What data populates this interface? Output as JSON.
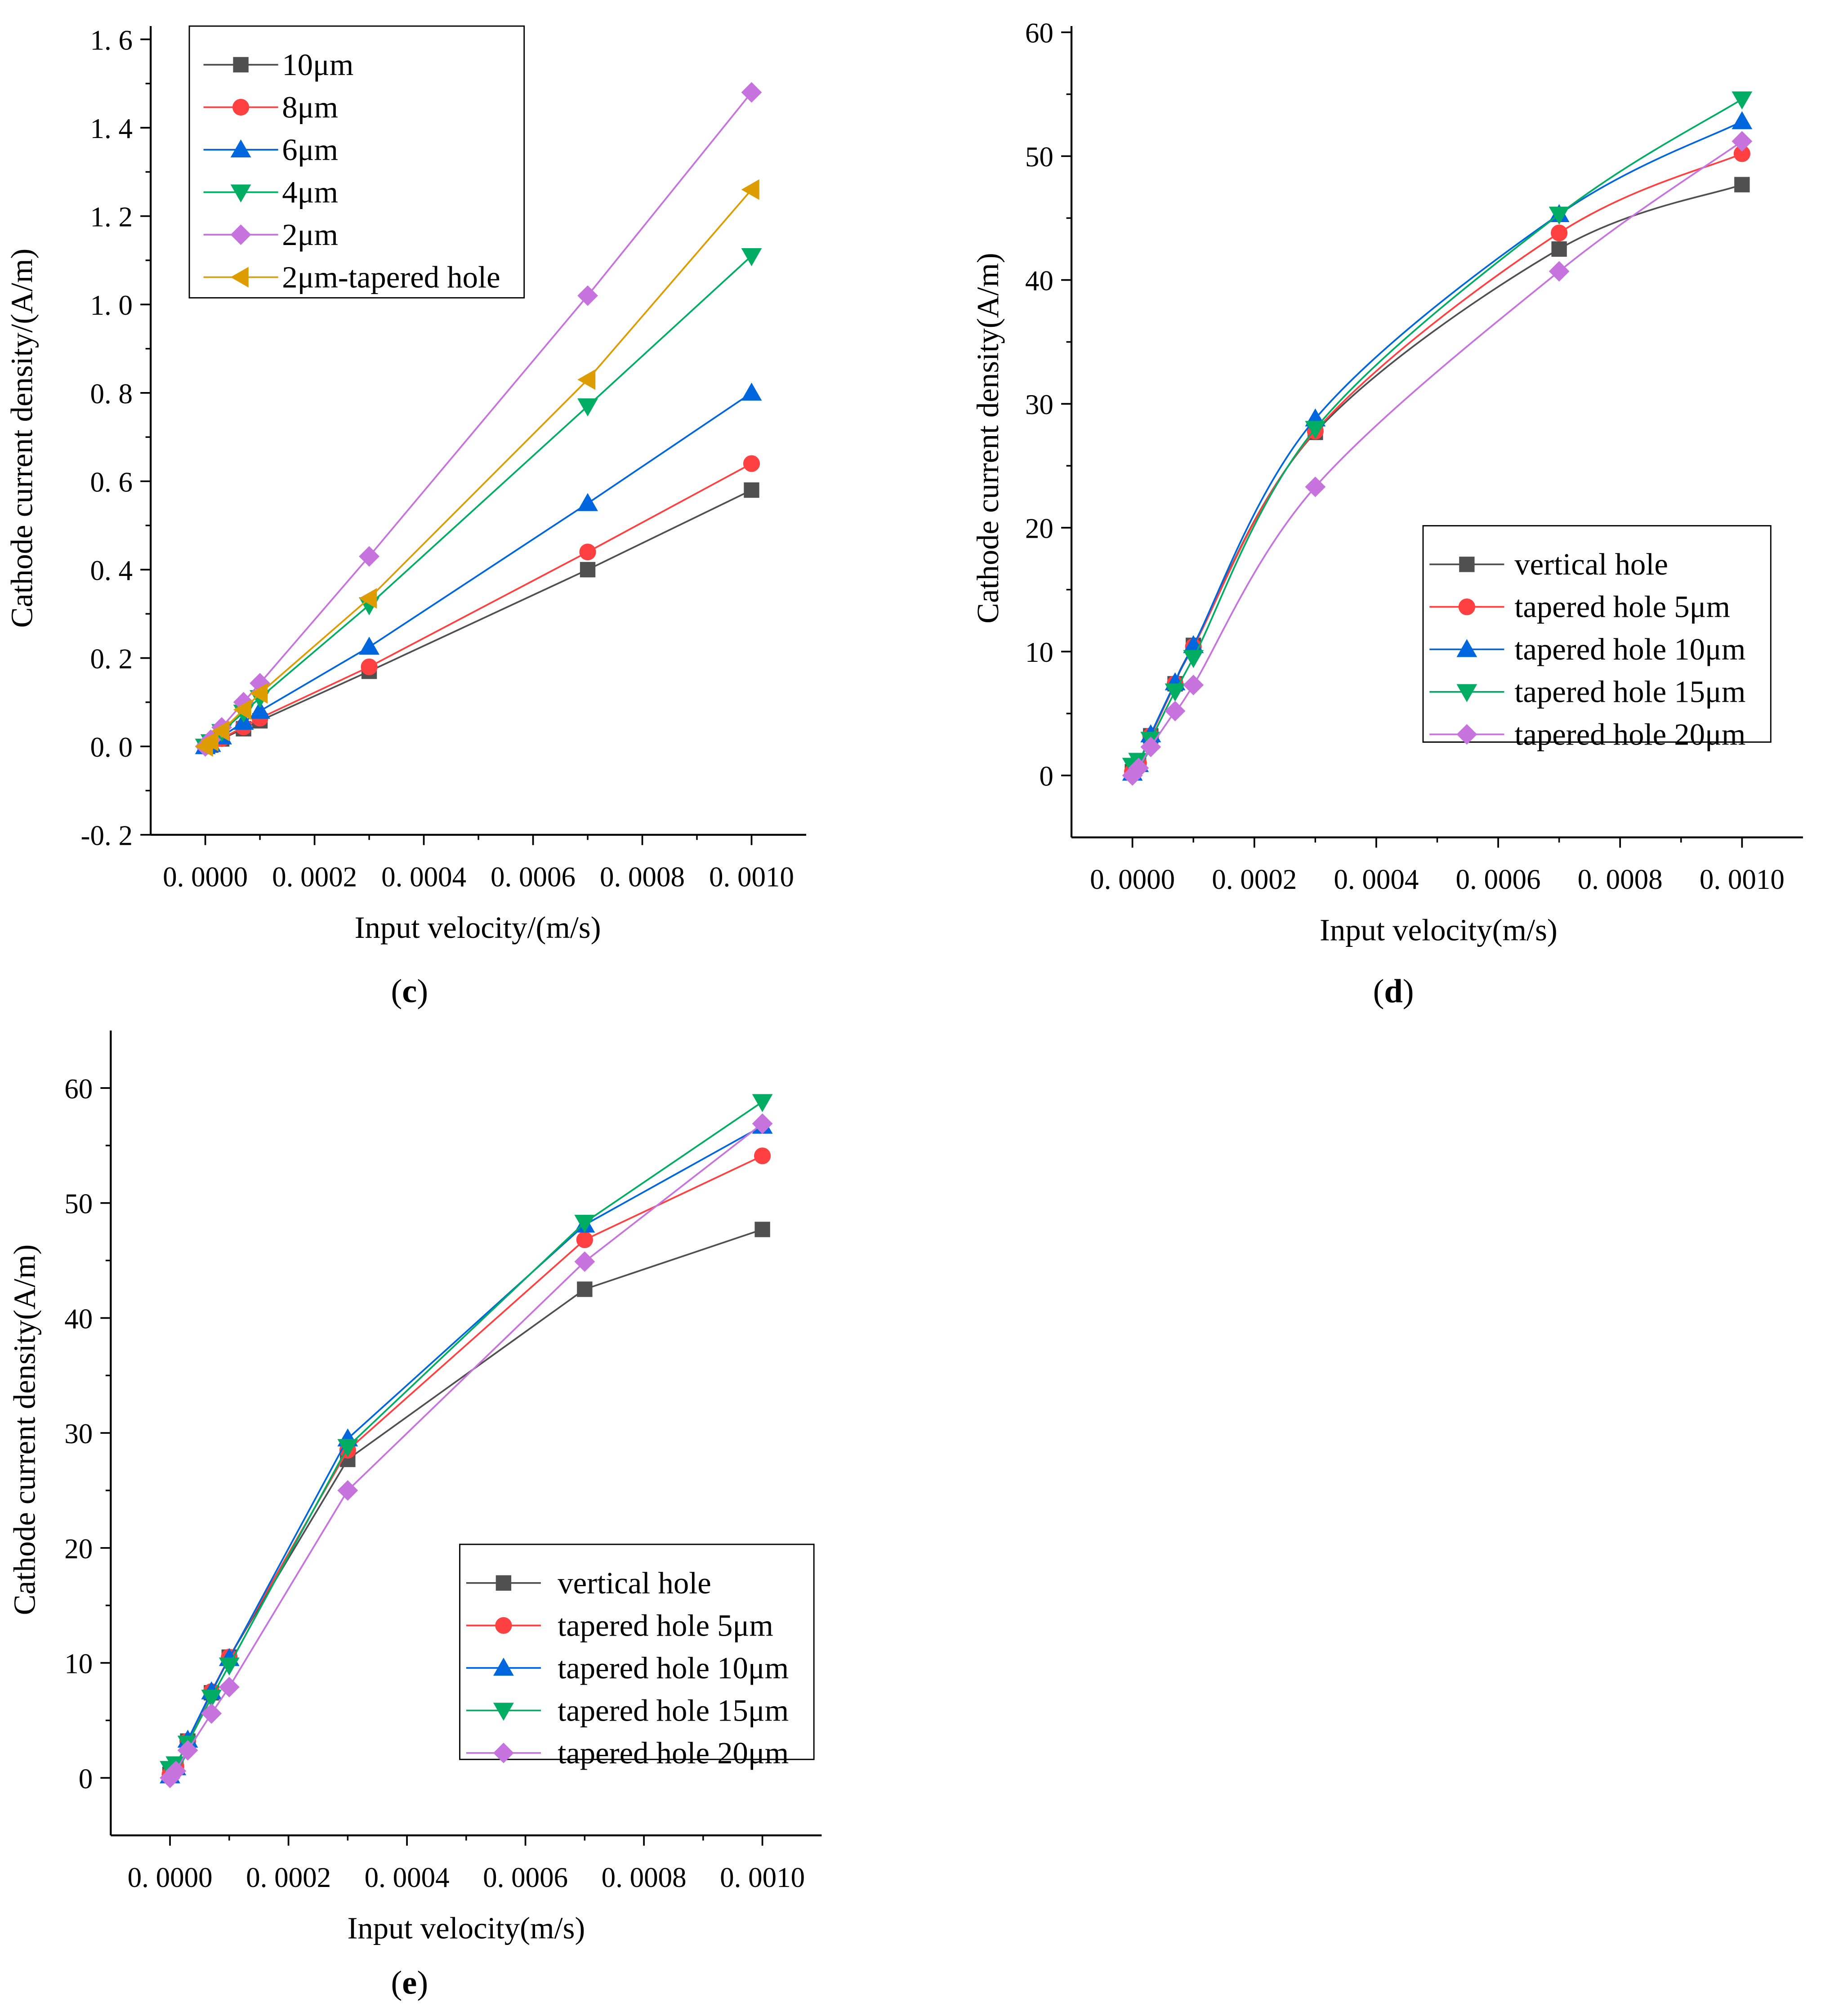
{
  "chart_data": [
    {
      "id": "c",
      "type": "line",
      "caption": "(c)",
      "caption_letter": "c",
      "xlabel": "Input velocity/(m/s)",
      "ylabel": "Cathode current density/(A/m)",
      "xlim": [
        -0.0001,
        0.0011
      ],
      "ylim": [
        -0.2,
        1.63
      ],
      "xticks": [
        0,
        0.0002,
        0.0004,
        0.0006,
        0.0008,
        0.001
      ],
      "xtick_labels": [
        "0. 0000",
        "0. 0002",
        "0. 0004",
        "0. 0006",
        "0. 0008",
        "0. 0010"
      ],
      "yticks": [
        -0.2,
        0,
        0.2,
        0.4,
        0.6,
        0.8,
        1.0,
        1.2,
        1.4,
        1.6
      ],
      "ytick_labels": [
        "-0. 2",
        "0. 0",
        "0. 2",
        "0. 4",
        "0. 6",
        "0. 8",
        "1. 0",
        "1. 2",
        "1. 4",
        "1. 6"
      ],
      "legend_position": "top-left",
      "x": [
        0,
        1e-05,
        3e-05,
        7e-05,
        0.0001,
        0.0003,
        0.0007,
        0.001
      ],
      "series": [
        {
          "name": "10μm",
          "color": "#505050",
          "marker": "square",
          "values": [
            0,
            0.003,
            0.017,
            0.04,
            0.058,
            0.17,
            0.4,
            0.58
          ]
        },
        {
          "name": "8μm",
          "color": "#ff4040",
          "marker": "circle",
          "values": [
            0,
            0.004,
            0.018,
            0.044,
            0.064,
            0.18,
            0.44,
            0.64
          ]
        },
        {
          "name": "6μm",
          "color": "#0066dd",
          "marker": "triangle-up",
          "values": [
            0,
            0.005,
            0.022,
            0.055,
            0.08,
            0.225,
            0.55,
            0.8
          ]
        },
        {
          "name": "4μm",
          "color": "#00ad63",
          "marker": "triangle-down",
          "values": [
            0,
            0.01,
            0.033,
            0.077,
            0.11,
            0.32,
            0.77,
            1.11
          ]
        },
        {
          "name": "2μm",
          "color": "#c673de",
          "marker": "diamond",
          "values": [
            0,
            0.015,
            0.043,
            0.1,
            0.143,
            0.43,
            1.02,
            1.48
          ]
        },
        {
          "name": "2μm-tapered hole",
          "color": "#dd9d00",
          "marker": "triangle-left",
          "values": [
            0,
            0.012,
            0.035,
            0.083,
            0.12,
            0.335,
            0.83,
            1.26
          ]
        }
      ]
    },
    {
      "id": "d",
      "type": "line",
      "caption": "(d)",
      "caption_letter": "d",
      "xlabel": "Input velocity(m/s)",
      "ylabel": "Cathode current density(A/m)",
      "xlim": [
        -0.0001,
        0.0011
      ],
      "ylim": [
        -5,
        60.5
      ],
      "xticks": [
        0,
        0.0002,
        0.0004,
        0.0006,
        0.0008,
        0.001
      ],
      "xtick_labels": [
        "0. 0000",
        "0. 0002",
        "0. 0004",
        "0. 0006",
        "0. 0008",
        "0. 0010"
      ],
      "yticks": [
        0,
        10,
        20,
        30,
        40,
        50,
        60
      ],
      "ytick_labels": [
        "0",
        "10",
        "20",
        "30",
        "40",
        "50",
        "60"
      ],
      "legend_position": "center-right",
      "smooth": true,
      "x": [
        0,
        1e-05,
        3e-05,
        7e-05,
        0.0001,
        0.0003,
        0.0007,
        0.001
      ],
      "series": [
        {
          "name": "vertical hole",
          "color": "#505050",
          "marker": "square",
          "values": [
            0.3,
            1.0,
            3.2,
            7.4,
            10.5,
            27.7,
            42.5,
            47.7
          ]
        },
        {
          "name": "tapered hole 5μm",
          "color": "#ff4040",
          "marker": "circle",
          "values": [
            0.3,
            1.0,
            3.2,
            7.4,
            10.4,
            27.8,
            43.8,
            50.2
          ]
        },
        {
          "name": "tapered hole 10μm",
          "color": "#0066dd",
          "marker": "triangle-up",
          "values": [
            0.2,
            0.9,
            3.3,
            7.5,
            10.5,
            28.8,
            45.3,
            52.8
          ]
        },
        {
          "name": "tapered hole 15μm",
          "color": "#00ad63",
          "marker": "triangle-down",
          "values": [
            0.8,
            1.2,
            2.9,
            6.8,
            9.5,
            28.0,
            45.3,
            54.6
          ]
        },
        {
          "name": "tapered hole 20μm",
          "color": "#c673de",
          "marker": "diamond",
          "values": [
            0,
            0.6,
            2.3,
            5.2,
            7.3,
            23.3,
            40.7,
            51.2
          ]
        }
      ]
    },
    {
      "id": "e",
      "type": "line",
      "caption": "(e)",
      "caption_letter": "e",
      "xlabel": "Input velocity(m/s)",
      "ylabel": "Cathode current density(A/m)",
      "xlim": [
        -0.0001,
        0.0011
      ],
      "ylim": [
        -5,
        65
      ],
      "xticks": [
        0,
        0.0002,
        0.0004,
        0.0006,
        0.0008,
        0.001
      ],
      "xtick_labels": [
        "0. 0000",
        "0. 0002",
        "0. 0004",
        "0. 0006",
        "0. 0008",
        "0. 0010"
      ],
      "yticks": [
        0,
        10,
        20,
        30,
        40,
        50,
        60
      ],
      "ytick_labels": [
        "0",
        "10",
        "20",
        "30",
        "40",
        "50",
        "60"
      ],
      "legend_position": "bottom-center",
      "x": [
        0,
        1e-05,
        3e-05,
        7e-05,
        0.0001,
        0.0003,
        0.0007,
        0.001
      ],
      "series": [
        {
          "name": "vertical hole",
          "color": "#505050",
          "marker": "square",
          "values": [
            0.3,
            1.0,
            3.2,
            7.4,
            10.5,
            27.7,
            42.5,
            47.7
          ]
        },
        {
          "name": "tapered hole 5μm",
          "color": "#ff4040",
          "marker": "circle",
          "values": [
            0.3,
            1.0,
            3.2,
            7.5,
            10.5,
            28.5,
            46.8,
            54.1
          ]
        },
        {
          "name": "tapered hole 10μm",
          "color": "#0066dd",
          "marker": "triangle-up",
          "values": [
            0.2,
            0.9,
            3.3,
            7.5,
            10.4,
            29.5,
            48.1,
            56.7
          ]
        },
        {
          "name": "tapered hole 15μm",
          "color": "#00ad63",
          "marker": "triangle-down",
          "values": [
            0.8,
            1.2,
            3.0,
            7.0,
            9.8,
            28.8,
            48.3,
            58.8
          ]
        },
        {
          "name": "tapered hole 20μm",
          "color": "#c673de",
          "marker": "diamond",
          "values": [
            0,
            0.6,
            2.4,
            5.6,
            7.9,
            25.0,
            44.9,
            56.9
          ]
        }
      ]
    }
  ]
}
